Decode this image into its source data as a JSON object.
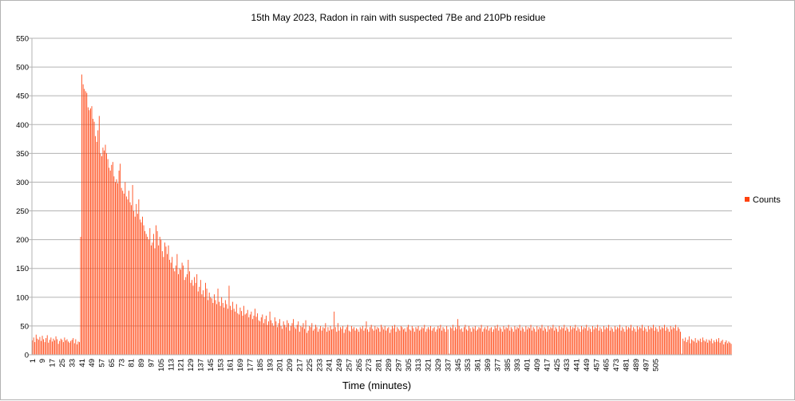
{
  "chart_data": {
    "type": "bar",
    "title": "15th May 2023, Radon in rain with suspected 7Be and 210Pb residue",
    "xlabel": "Time (minutes)",
    "ylabel": "",
    "ylim": [
      0,
      550
    ],
    "yticks": [
      0,
      50,
      100,
      150,
      200,
      250,
      300,
      350,
      400,
      450,
      500,
      550
    ],
    "grid": true,
    "legend_position": "right",
    "x_start": 1,
    "x_end": 505,
    "x_label_step": 8,
    "series": [
      {
        "name": "Counts",
        "color": "#ff420e",
        "values": [
          25,
          30,
          22,
          35,
          28,
          26,
          31,
          24,
          33,
          27,
          22,
          29,
          34,
          21,
          26,
          30,
          23,
          28,
          25,
          32,
          27,
          19,
          24,
          28,
          26,
          22,
          30,
          25,
          27,
          23,
          21,
          24,
          26,
          29,
          20,
          27,
          18,
          23,
          22,
          205,
          487,
          470,
          462,
          458,
          455,
          430,
          425,
          428,
          432,
          410,
          405,
          380,
          370,
          390,
          415,
          350,
          345,
          360,
          355,
          365,
          350,
          340,
          325,
          320,
          330,
          335,
          310,
          300,
          305,
          298,
          320,
          332,
          290,
          285,
          280,
          300,
          275,
          270,
          285,
          265,
          260,
          295,
          250,
          240,
          262,
          245,
          270,
          235,
          230,
          240,
          225,
          215,
          210,
          205,
          200,
          220,
          190,
          195,
          210,
          185,
          225,
          215,
          190,
          205,
          200,
          180,
          170,
          195,
          188,
          175,
          190,
          165,
          160,
          170,
          150,
          145,
          155,
          175,
          140,
          150,
          148,
          160,
          155,
          130,
          135,
          140,
          165,
          145,
          125,
          130,
          120,
          135,
          125,
          140,
          110,
          118,
          130,
          105,
          112,
          100,
          125,
          115,
          95,
          108,
          100,
          98,
          90,
          105,
          95,
          88,
          115,
          92,
          85,
          100,
          90,
          82,
          95,
          88,
          80,
          120,
          85,
          78,
          92,
          80,
          75,
          88,
          72,
          70,
          82,
          76,
          68,
          85,
          70,
          72,
          78,
          65,
          70,
          75,
          62,
          68,
          80,
          66,
          72,
          60,
          58,
          65,
          70,
          55,
          62,
          68,
          52,
          58,
          75,
          60,
          55,
          50,
          65,
          58,
          48,
          55,
          62,
          50,
          45,
          58,
          52,
          48,
          60,
          55,
          42,
          50,
          55,
          62,
          48,
          45,
          52,
          58,
          40,
          50,
          48,
          55,
          45,
          60,
          38,
          42,
          50,
          48,
          55,
          42,
          45,
          52,
          48,
          40,
          45,
          50,
          42,
          48,
          46,
          55,
          40,
          48,
          42,
          50,
          44,
          45,
          75,
          48,
          40,
          55,
          42,
          48,
          45,
          50,
          38,
          44,
          48,
          52,
          42,
          40,
          50,
          45,
          48,
          42,
          46,
          44,
          40,
          48,
          45,
          50,
          42,
          46,
          58,
          44,
          40,
          48,
          52,
          45,
          42,
          50,
          44,
          48,
          46,
          40,
          52,
          48,
          44,
          50,
          42,
          46,
          48,
          38,
          44,
          50,
          46,
          52,
          40,
          48,
          45,
          42,
          50,
          48,
          44,
          46,
          40,
          48,
          52,
          44,
          42,
          50,
          46,
          40,
          48,
          45,
          50,
          42,
          44,
          48,
          46,
          52,
          40,
          45,
          48,
          44,
          50,
          42,
          46,
          48,
          40,
          44,
          50,
          46,
          52,
          42,
          48,
          45,
          40,
          50,
          44,
          2,
          48,
          46,
          52,
          42,
          48,
          45,
          62,
          50,
          44,
          46,
          40,
          48,
          52,
          44,
          42,
          50,
          46,
          40,
          48,
          45,
          50,
          42,
          44,
          48,
          46,
          52,
          40,
          45,
          48,
          44,
          50,
          42,
          46,
          48,
          40,
          44,
          50,
          46,
          52,
          42,
          48,
          45,
          40,
          50,
          44,
          48,
          46,
          52,
          42,
          48,
          45,
          40,
          50,
          44,
          48,
          46,
          52,
          42,
          48,
          45,
          40,
          50,
          44,
          48,
          46,
          52,
          42,
          48,
          45,
          40,
          50,
          44,
          48,
          46,
          52,
          42,
          48,
          45,
          40,
          50,
          44,
          48,
          46,
          52,
          42,
          48,
          45,
          40,
          50,
          44,
          48,
          46,
          52,
          42,
          48,
          45,
          40,
          50,
          44,
          48,
          46,
          52,
          42,
          48,
          45,
          40,
          50,
          44,
          48,
          46,
          52,
          42,
          48,
          45,
          40,
          50,
          44,
          48,
          46,
          52,
          42,
          48,
          45,
          40,
          50,
          44,
          48,
          46,
          52,
          42,
          48,
          45,
          40,
          50,
          44,
          48,
          46,
          52,
          42,
          48,
          45,
          40,
          50,
          44,
          48,
          46,
          52,
          42,
          48,
          45,
          40,
          50,
          44,
          48,
          46,
          52,
          42,
          48,
          45,
          40,
          50,
          44,
          48,
          46,
          52,
          42,
          48,
          45,
          40,
          50,
          44,
          48,
          46,
          52,
          42,
          48,
          45,
          40,
          50,
          44,
          48,
          46,
          52,
          42,
          48,
          45,
          40,
          2,
          28,
          24,
          30,
          22,
          26,
          32,
          20,
          27,
          25,
          23,
          29,
          21,
          26,
          24,
          28,
          22,
          30,
          25,
          23,
          27,
          21,
          26,
          24,
          28,
          20,
          25,
          22,
          27,
          23,
          29,
          21,
          24,
          26,
          18,
          22,
          25,
          20,
          23,
          21,
          19
        ]
      }
    ]
  }
}
